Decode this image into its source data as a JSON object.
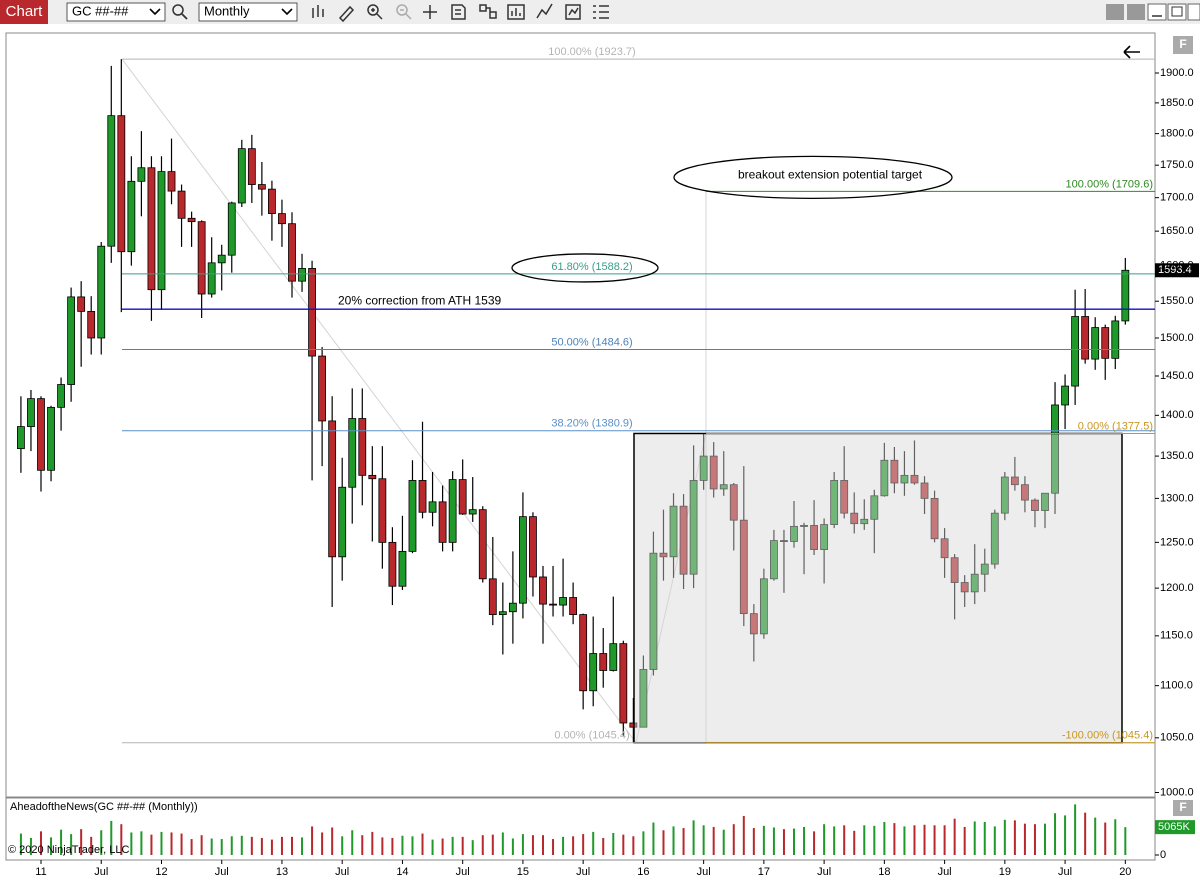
{
  "toolbar": {
    "tab": "Chart",
    "instrument": "GC ##-##",
    "interval": "Monthly"
  },
  "copyright": "© 2020 NinjaTrader, LLC",
  "chart_data": [
    {
      "type": "candlestick",
      "log_scale": true,
      "up_color": "#1f9a2a",
      "down_color": "#b8282c",
      "ylim": [
        996,
        1969
      ],
      "yticks": [
        {
          "value": 1000,
          "label": "1000.0"
        },
        {
          "value": 1050,
          "label": "1050.0"
        },
        {
          "value": 1100,
          "label": "1100.0"
        },
        {
          "value": 1150,
          "label": "1150.0"
        },
        {
          "value": 1200,
          "label": "1200.0"
        },
        {
          "value": 1250,
          "label": "1250.0"
        },
        {
          "value": 1300,
          "label": "1300.0"
        },
        {
          "value": 1350,
          "label": "1350.0"
        },
        {
          "value": 1400,
          "label": "1400.0"
        },
        {
          "value": 1450,
          "label": "1450.0"
        },
        {
          "value": 1500,
          "label": "1500.0"
        },
        {
          "value": 1550,
          "label": "1550.0"
        },
        {
          "value": 1600,
          "label": "1600.0"
        },
        {
          "value": 1650,
          "label": "1650.0"
        },
        {
          "value": 1700,
          "label": "1700.0"
        },
        {
          "value": 1750,
          "label": "1750.0"
        },
        {
          "value": 1800,
          "label": "1800.0"
        },
        {
          "value": 1850,
          "label": "1850.0"
        },
        {
          "value": 1900,
          "label": "1900.0"
        }
      ],
      "xticks": [
        {
          "value": "2011-01",
          "label": "11"
        },
        {
          "value": "2011-07",
          "label": "Jul"
        },
        {
          "value": "2012-01",
          "label": "12"
        },
        {
          "value": "2012-07",
          "label": "Jul"
        },
        {
          "value": "2013-01",
          "label": "13"
        },
        {
          "value": "2013-07",
          "label": "Jul"
        },
        {
          "value": "2014-01",
          "label": "14"
        },
        {
          "value": "2014-07",
          "label": "Jul"
        },
        {
          "value": "2015-01",
          "label": "15"
        },
        {
          "value": "2015-07",
          "label": "Jul"
        },
        {
          "value": "2016-01",
          "label": "16"
        },
        {
          "value": "2016-07",
          "label": "Jul"
        },
        {
          "value": "2017-01",
          "label": "17"
        },
        {
          "value": "2017-07",
          "label": "Jul"
        },
        {
          "value": "2018-01",
          "label": "18"
        },
        {
          "value": "2018-07",
          "label": "Jul"
        },
        {
          "value": "2019-01",
          "label": "19"
        },
        {
          "value": "2019-07",
          "label": "Jul"
        },
        {
          "value": "2020-01",
          "label": "20"
        }
      ],
      "x": [
        "2010-11",
        "2010-12",
        "2011-01",
        "2011-02",
        "2011-03",
        "2011-04",
        "2011-05",
        "2011-06",
        "2011-07",
        "2011-08",
        "2011-09",
        "2011-10",
        "2011-11",
        "2011-12",
        "2012-01",
        "2012-02",
        "2012-03",
        "2012-04",
        "2012-05",
        "2012-06",
        "2012-07",
        "2012-08",
        "2012-09",
        "2012-10",
        "2012-11",
        "2012-12",
        "2013-01",
        "2013-02",
        "2013-03",
        "2013-04",
        "2013-05",
        "2013-06",
        "2013-07",
        "2013-08",
        "2013-09",
        "2013-10",
        "2013-11",
        "2013-12",
        "2014-01",
        "2014-02",
        "2014-03",
        "2014-04",
        "2014-05",
        "2014-06",
        "2014-07",
        "2014-08",
        "2014-09",
        "2014-10",
        "2014-11",
        "2014-12",
        "2015-01",
        "2015-02",
        "2015-03",
        "2015-04",
        "2015-05",
        "2015-06",
        "2015-07",
        "2015-08",
        "2015-09",
        "2015-10",
        "2015-11",
        "2015-12",
        "2016-01",
        "2016-02",
        "2016-03",
        "2016-04",
        "2016-05",
        "2016-06",
        "2016-07",
        "2016-08",
        "2016-09",
        "2016-10",
        "2016-11",
        "2016-12",
        "2017-01",
        "2017-02",
        "2017-03",
        "2017-04",
        "2017-05",
        "2017-06",
        "2017-07",
        "2017-08",
        "2017-09",
        "2017-10",
        "2017-11",
        "2017-12",
        "2018-01",
        "2018-02",
        "2018-03",
        "2018-04",
        "2018-05",
        "2018-06",
        "2018-07",
        "2018-08",
        "2018-09",
        "2018-10",
        "2018-11",
        "2018-12",
        "2019-01",
        "2019-02",
        "2019-03",
        "2019-04",
        "2019-05",
        "2019-06",
        "2019-07",
        "2019-08",
        "2019-09",
        "2019-10",
        "2019-11",
        "2019-12",
        "2020-01"
      ],
      "open": [
        1359,
        1386,
        1421,
        1333,
        1410,
        1439,
        1556,
        1536,
        1500,
        1628,
        1829,
        1620,
        1725,
        1746,
        1566,
        1740,
        1710,
        1669,
        1664,
        1560,
        1604,
        1615,
        1692,
        1776,
        1720,
        1713,
        1676,
        1661,
        1578,
        1596,
        1476,
        1393,
        1234,
        1313,
        1396,
        1327,
        1323,
        1250,
        1202,
        1240,
        1321,
        1284,
        1296,
        1250,
        1322,
        1282,
        1287,
        1210,
        1172,
        1175,
        1184,
        1279,
        1212,
        1183,
        1182,
        1190,
        1172,
        1095,
        1132,
        1115,
        1142,
        1064,
        1060,
        1116,
        1238,
        1234,
        1291,
        1215,
        1321,
        1350,
        1311,
        1316,
        1275,
        1173,
        1152,
        1210,
        1252,
        1251,
        1268,
        1269,
        1242,
        1270,
        1321,
        1283,
        1271,
        1276,
        1303,
        1345,
        1318,
        1327,
        1318,
        1300,
        1254,
        1233,
        1206,
        1196,
        1215,
        1226,
        1283,
        1325,
        1316,
        1298,
        1286,
        1306,
        1413,
        1437,
        1529,
        1472,
        1514,
        1473,
        1523
      ],
      "high": [
        1424,
        1432,
        1424,
        1412,
        1448,
        1569,
        1578,
        1557,
        1634,
        1912,
        1923.7,
        1764,
        1804,
        1764,
        1764,
        1792,
        1720,
        1679,
        1666,
        1641,
        1630,
        1694,
        1790,
        1798,
        1755,
        1726,
        1697,
        1678,
        1617,
        1607,
        1488,
        1424,
        1348,
        1434,
        1434,
        1362,
        1362,
        1267,
        1280,
        1345,
        1392,
        1331,
        1315,
        1332,
        1346,
        1325,
        1291,
        1256,
        1206,
        1240,
        1307,
        1284,
        1224,
        1224,
        1232,
        1206,
        1173,
        1170,
        1158,
        1191,
        1145,
        1088,
        1130,
        1262,
        1287,
        1306,
        1305,
        1363,
        1377.5,
        1367,
        1356,
        1318,
        1338,
        1183,
        1221,
        1264,
        1264,
        1297,
        1272,
        1298,
        1277,
        1331,
        1362,
        1307,
        1299,
        1310,
        1366,
        1361,
        1356,
        1369,
        1326,
        1309,
        1266,
        1237,
        1214,
        1248,
        1243,
        1287,
        1331,
        1349,
        1326,
        1300,
        1306,
        1442,
        1452,
        1566,
        1567,
        1528,
        1518,
        1530,
        1611
      ],
      "low": [
        1330,
        1356,
        1308,
        1320,
        1381,
        1417,
        1462,
        1478,
        1478,
        1604,
        1535,
        1600,
        1672,
        1523,
        1538,
        1690,
        1627,
        1627,
        1527,
        1555,
        1565,
        1590,
        1686,
        1692,
        1673,
        1636,
        1627,
        1555,
        1563,
        1321,
        1338,
        1180,
        1208,
        1271,
        1292,
        1251,
        1221,
        1182,
        1198,
        1238,
        1277,
        1268,
        1240,
        1240,
        1281,
        1273,
        1206,
        1161,
        1131,
        1142,
        1168,
        1191,
        1142,
        1170,
        1170,
        1162,
        1077,
        1080,
        1098,
        1114,
        1052,
        1045.4,
        1061,
        1110,
        1208,
        1211,
        1199,
        1200,
        1310,
        1301,
        1303,
        1241,
        1160,
        1124,
        1147,
        1208,
        1195,
        1244,
        1215,
        1236,
        1205,
        1266,
        1277,
        1260,
        1264,
        1238,
        1302,
        1306,
        1303,
        1316,
        1282,
        1250,
        1211,
        1167,
        1180,
        1183,
        1196,
        1221,
        1275,
        1309,
        1284,
        1267,
        1266,
        1282,
        1383,
        1413,
        1466,
        1458,
        1445,
        1459,
        1518
      ],
      "close": [
        1386,
        1421,
        1333,
        1410,
        1439,
        1556,
        1536,
        1500,
        1628,
        1829,
        1620,
        1725,
        1746,
        1566,
        1740,
        1710,
        1669,
        1664,
        1560,
        1604,
        1615,
        1692,
        1776,
        1720,
        1713,
        1676,
        1661,
        1578,
        1596,
        1476,
        1393,
        1234,
        1313,
        1396,
        1327,
        1323,
        1250,
        1202,
        1240,
        1321,
        1284,
        1296,
        1250,
        1322,
        1282,
        1287,
        1210,
        1172,
        1175,
        1184,
        1279,
        1212,
        1183,
        1182,
        1190,
        1172,
        1095,
        1132,
        1115,
        1142,
        1064,
        1060,
        1116,
        1238,
        1234,
        1291,
        1215,
        1321,
        1350,
        1311,
        1316,
        1275,
        1173,
        1152,
        1210,
        1252,
        1251,
        1268,
        1269,
        1242,
        1270,
        1321,
        1283,
        1271,
        1276,
        1303,
        1345,
        1318,
        1327,
        1318,
        1300,
        1254,
        1233,
        1206,
        1196,
        1215,
        1226,
        1283,
        1325,
        1316,
        1298,
        1286,
        1306,
        1413,
        1437,
        1529,
        1472,
        1514,
        1473,
        1523,
        1593.4
      ],
      "last_price": 1593.4,
      "fib_retracement": [
        {
          "value": 1923.7,
          "label": "100.00% (1923.7)",
          "color": "#b4b4b4"
        },
        {
          "value": 1588.2,
          "label": "61.80% (1588.2)",
          "color": "#3a9c8c"
        },
        {
          "value": 1484.6,
          "label": "50.00% (1484.6)",
          "color": "#4f81b9"
        },
        {
          "value": 1380.9,
          "label": "38.20% (1380.9)",
          "color": "#5b8fc8"
        },
        {
          "value": 1045.4,
          "label": "0.00% (1045.4)",
          "color": "#b4b4b4"
        }
      ],
      "fib_extension": [
        {
          "value": 1709.6,
          "label": "100.00% (1709.6)",
          "color": "#2e8b22"
        },
        {
          "value": 1377.5,
          "label": "0.00% (1377.5)",
          "color": "#c8961e"
        },
        {
          "value": 1045.4,
          "label": "-100.00% (1045.4)",
          "color": "#c8961e"
        }
      ],
      "horizontal_line": {
        "value": 1539,
        "label": "20% correction from ATH 1539",
        "color": "#1010c8"
      },
      "annotation": "breakout extension potential target"
    },
    {
      "type": "bar",
      "title": "AheadoftheNews(GC ##-## (Monthly))",
      "ylim": [
        0,
        10000
      ],
      "yticks": [
        0
      ],
      "values": [
        3900,
        3100,
        4300,
        3200,
        4600,
        3800,
        4700,
        3300,
        4500,
        6200,
        5600,
        4100,
        4300,
        3700,
        4200,
        4100,
        3900,
        2900,
        3600,
        3000,
        2900,
        3400,
        3500,
        3300,
        3100,
        2800,
        3300,
        3300,
        3200,
        5200,
        4100,
        5000,
        3400,
        4500,
        3600,
        4200,
        3200,
        3100,
        3500,
        3400,
        3900,
        2800,
        3000,
        3300,
        3300,
        2700,
        3600,
        3700,
        4100,
        3000,
        3800,
        3600,
        3600,
        2900,
        3300,
        3400,
        3800,
        4200,
        3100,
        4000,
        3700,
        3400,
        4300,
        5900,
        4500,
        5200,
        4900,
        6300,
        5400,
        5100,
        4600,
        5600,
        7100,
        4900,
        5300,
        5000,
        4700,
        4800,
        5100,
        4300,
        5600,
        5200,
        5400,
        4400,
        5400,
        5300,
        6000,
        5800,
        5200,
        5400,
        5500,
        5400,
        5400,
        6600,
        5100,
        6100,
        6000,
        5200,
        6400,
        6300,
        5700,
        5600,
        5700,
        7600,
        7200,
        9200,
        7700,
        6800,
        5900,
        6500,
        5065
      ],
      "last_value_label": {
        "value": 5065,
        "label": "5065K"
      }
    }
  ]
}
